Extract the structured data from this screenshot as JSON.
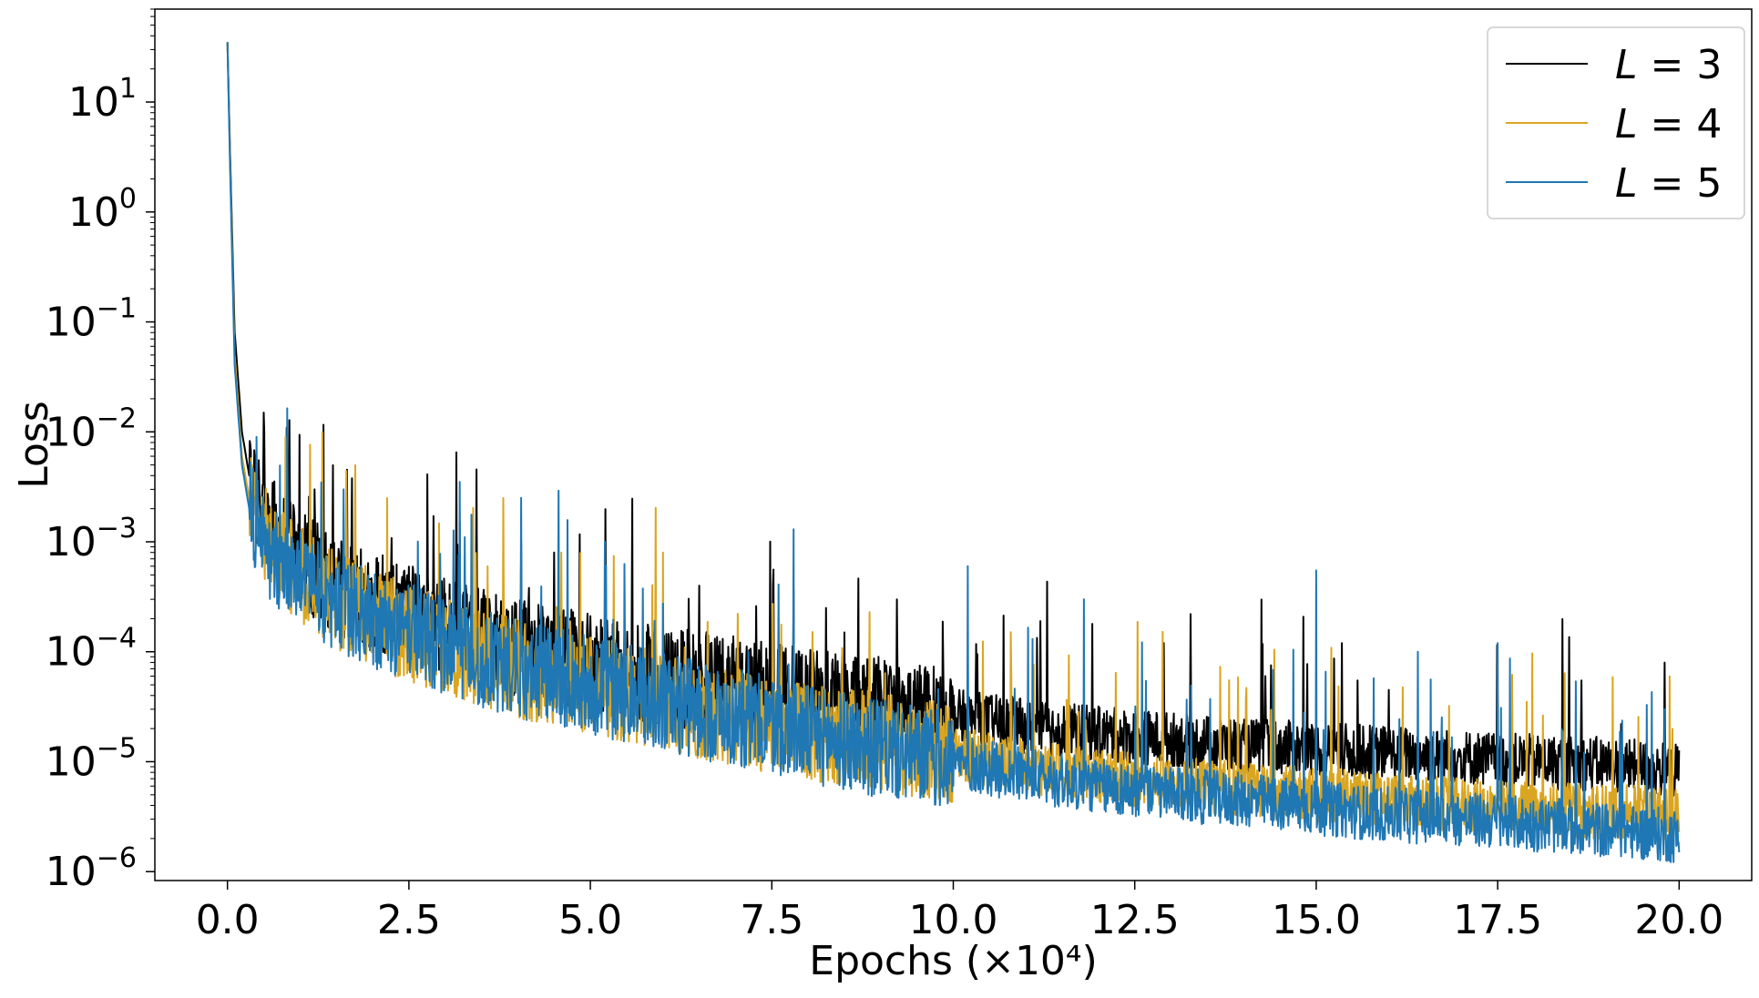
{
  "chart_data": {
    "type": "line",
    "title": "",
    "xlabel": "Epochs (×10⁴)",
    "ylabel": "Loss",
    "xscale": "linear",
    "yscale": "log",
    "xlim": [
      -1.0,
      21.0
    ],
    "ylim": [
      8.3e-07,
      70
    ],
    "xticks": [
      0.0,
      2.5,
      5.0,
      7.5,
      10.0,
      12.5,
      15.0,
      17.5,
      20.0
    ],
    "xtick_labels": [
      "0.0",
      "2.5",
      "5.0",
      "7.5",
      "10.0",
      "12.5",
      "15.0",
      "17.5",
      "20.0"
    ],
    "yticks": [
      1e-06,
      1e-05,
      0.0001,
      0.001,
      0.01,
      0.1,
      1,
      10
    ],
    "ytick_labels": [
      {
        "base": "10",
        "exp": "−6"
      },
      {
        "base": "10",
        "exp": "−5"
      },
      {
        "base": "10",
        "exp": "−4"
      },
      {
        "base": "10",
        "exp": "−3"
      },
      {
        "base": "10",
        "exp": "−2"
      },
      {
        "base": "10",
        "exp": "−1"
      },
      {
        "base": "10",
        "exp": "0"
      },
      {
        "base": "10",
        "exp": "1"
      }
    ],
    "grid": false,
    "legend_position": "top-right",
    "series": [
      {
        "name": "L = 3",
        "legend_var": "L",
        "legend_value": "3",
        "color": "#000000",
        "x": [
          0.0,
          0.05,
          0.1,
          0.2,
          0.3,
          0.5,
          0.75,
          1.0,
          1.5,
          2.0,
          2.5,
          3.0,
          4.0,
          5.0,
          6.0,
          7.0,
          8.0,
          9.0,
          10.0,
          11.0,
          12.0,
          13.0,
          14.0,
          15.0,
          16.0,
          17.0,
          18.0,
          19.0,
          20.0
        ],
        "y": [
          35,
          1.5,
          0.08,
          0.01,
          0.004,
          0.0018,
          0.001,
          0.0007,
          0.0004,
          0.0003,
          0.00022,
          0.00017,
          0.00011,
          8e-05,
          6e-05,
          5e-05,
          3.8e-05,
          3.2e-05,
          2.6e-05,
          2.1e-05,
          1.8e-05,
          1.6e-05,
          1.4e-05,
          1.3e-05,
          1.2e-05,
          1.1e-05,
          1e-05,
          9.5e-06,
          8.2e-06
        ],
        "spikes": [
          {
            "x": 1.2,
            "y": 0.003
          },
          {
            "x": 3.2,
            "y": 0.0015
          },
          {
            "x": 4.5,
            "y": 0.0008
          },
          {
            "x": 6.5,
            "y": 0.0004
          },
          {
            "x": 8.5,
            "y": 0.00015
          },
          {
            "x": 11.2,
            "y": 0.00019
          },
          {
            "x": 12.9,
            "y": 0.00012
          },
          {
            "x": 14.3,
            "y": 6e-05
          },
          {
            "x": 16.0,
            "y": 4.5e-05
          },
          {
            "x": 17.5,
            "y": 3.5e-05
          },
          {
            "x": 19.2,
            "y": 2.2e-05
          }
        ]
      },
      {
        "name": "L = 4",
        "legend_var": "L",
        "legend_value": "4",
        "color": "#daa520",
        "x": [
          0.0,
          0.05,
          0.1,
          0.2,
          0.3,
          0.5,
          0.75,
          1.0,
          1.5,
          2.0,
          2.5,
          3.0,
          4.0,
          5.0,
          6.0,
          7.0,
          8.0,
          9.0,
          10.0,
          11.0,
          12.0,
          13.0,
          14.0,
          15.0,
          16.0,
          17.0,
          18.0,
          19.0,
          20.0
        ],
        "y": [
          35,
          1.2,
          0.05,
          0.006,
          0.0025,
          0.0012,
          0.0007,
          0.0005,
          0.0003,
          0.0002,
          0.00015,
          0.00011,
          7e-05,
          5e-05,
          3.5e-05,
          2.5e-05,
          1.9e-05,
          1.5e-05,
          1.2e-05,
          9e-06,
          7.5e-06,
          6.5e-06,
          5.5e-06,
          5e-06,
          4.5e-06,
          4e-06,
          3.7e-06,
          3.5e-06,
          3.3e-06
        ],
        "spikes": [
          {
            "x": 0.8,
            "y": 0.009
          },
          {
            "x": 2.2,
            "y": 0.0025
          },
          {
            "x": 3.8,
            "y": 0.0025
          },
          {
            "x": 4.6,
            "y": 0.0008
          },
          {
            "x": 6.0,
            "y": 0.0008
          },
          {
            "x": 10.8,
            "y": 6e-05
          },
          {
            "x": 12.6,
            "y": 5.5e-05
          },
          {
            "x": 13.8,
            "y": 5.5e-05
          },
          {
            "x": 17.9,
            "y": 3.5e-05
          }
        ]
      },
      {
        "name": "L = 5",
        "legend_var": "L",
        "legend_value": "5",
        "color": "#1f77b4",
        "x": [
          0.0,
          0.05,
          0.1,
          0.2,
          0.3,
          0.5,
          0.75,
          1.0,
          1.5,
          2.0,
          2.5,
          3.0,
          4.0,
          5.0,
          6.0,
          7.0,
          8.0,
          9.0,
          10.0,
          11.0,
          12.0,
          13.0,
          14.0,
          15.0,
          16.0,
          17.0,
          18.0,
          19.0,
          20.0
        ],
        "y": [
          35,
          1.0,
          0.04,
          0.005,
          0.002,
          0.001,
          0.0006,
          0.00045,
          0.00028,
          0.0002,
          0.00015,
          0.00011,
          7e-05,
          5e-05,
          3.5e-05,
          2.5e-05,
          1.8e-05,
          1.3e-05,
          1e-05,
          7.5e-06,
          6e-06,
          5e-06,
          4.5e-06,
          3.8e-06,
          3.3e-06,
          3e-06,
          2.7e-06,
          2.4e-06,
          2.1e-06
        ],
        "spikes": [
          {
            "x": 0.4,
            "y": 0.009
          },
          {
            "x": 1.6,
            "y": 0.003
          },
          {
            "x": 3.2,
            "y": 0.0035
          },
          {
            "x": 5.2,
            "y": 0.001
          },
          {
            "x": 7.8,
            "y": 0.0013
          },
          {
            "x": 10.2,
            "y": 0.0006
          },
          {
            "x": 11.8,
            "y": 0.0003
          },
          {
            "x": 15.0,
            "y": 0.00055
          },
          {
            "x": 16.4,
            "y": 0.0001
          },
          {
            "x": 17.5,
            "y": 0.00012
          },
          {
            "x": 19.8,
            "y": 3e-05
          }
        ]
      }
    ]
  }
}
